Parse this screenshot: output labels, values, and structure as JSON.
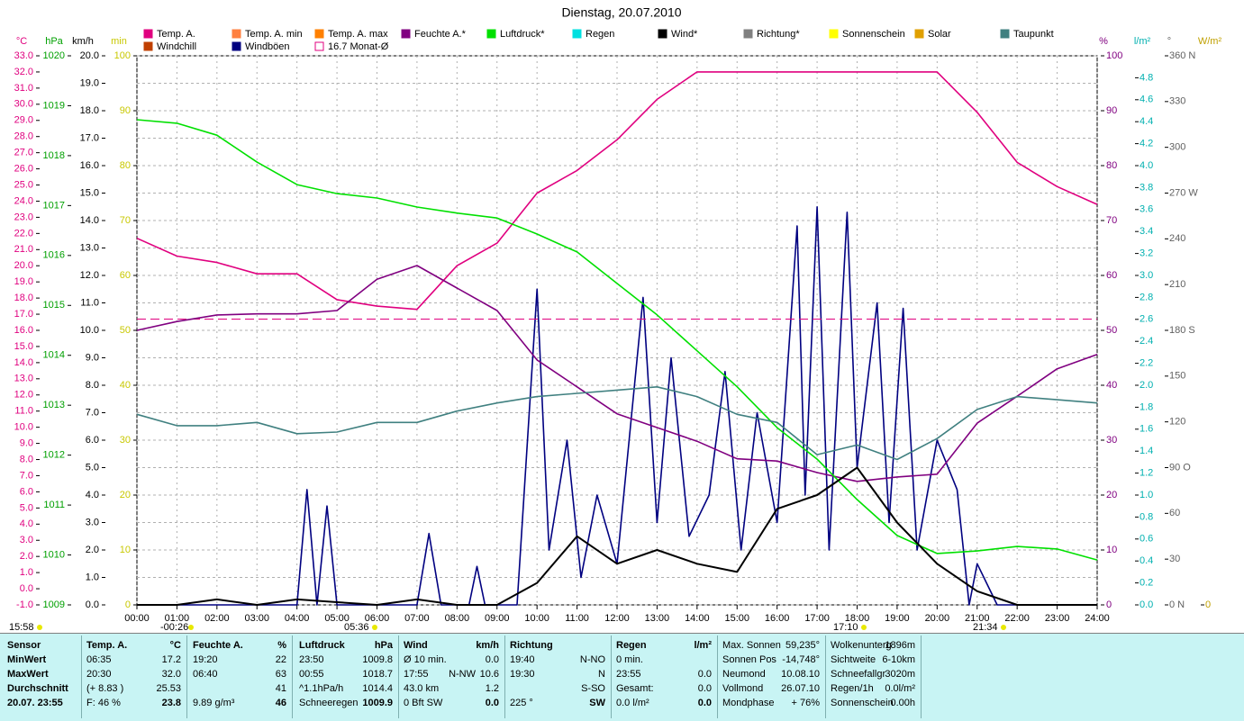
{
  "chart_data": {
    "type": "line",
    "title": "Dienstag, 20.07.2010",
    "grid": true,
    "xlim": [
      0,
      24
    ],
    "xticks": [
      {
        "value": 0,
        "label": "00:00"
      },
      {
        "value": 1,
        "label": "01:00"
      },
      {
        "value": 2,
        "label": "02:00"
      },
      {
        "value": 3,
        "label": "03:00"
      },
      {
        "value": 4,
        "label": "04:00"
      },
      {
        "value": 5,
        "label": "05:00"
      },
      {
        "value": 6,
        "label": "06:00"
      },
      {
        "value": 7,
        "label": "07:00"
      },
      {
        "value": 8,
        "label": "08:00"
      },
      {
        "value": 9,
        "label": "09:00"
      },
      {
        "value": 10,
        "label": "10:00"
      },
      {
        "value": 11,
        "label": "11:00"
      },
      {
        "value": 12,
        "label": "12:00"
      },
      {
        "value": 13,
        "label": "13:00"
      },
      {
        "value": 14,
        "label": "14:00"
      },
      {
        "value": 15,
        "label": "15:00"
      },
      {
        "value": 16,
        "label": "16:00"
      },
      {
        "value": 17,
        "label": "17:00"
      },
      {
        "value": 18,
        "label": "18:00"
      },
      {
        "value": 19,
        "label": "19:00"
      },
      {
        "value": 20,
        "label": "20:00"
      },
      {
        "value": 21,
        "label": "21:00"
      },
      {
        "value": 22,
        "label": "22:00"
      },
      {
        "value": 23,
        "label": "23:00"
      },
      {
        "value": 24,
        "label": "24:00"
      }
    ],
    "x": [
      0,
      1,
      2,
      3,
      4,
      5,
      6,
      7,
      8,
      9,
      10,
      11,
      12,
      13,
      14,
      15,
      16,
      17,
      18,
      19,
      20,
      21,
      22,
      23,
      24
    ],
    "axes": {
      "y": {
        "label": "°C",
        "color": "#e0007f",
        "ylim": [
          -1,
          33
        ],
        "yticks": [
          {
            "value": -1,
            "label": "-1.0"
          },
          {
            "value": 0,
            "label": "0.0"
          },
          {
            "value": 1,
            "label": "1.0"
          },
          {
            "value": 2,
            "label": "2.0"
          },
          {
            "value": 3,
            "label": "3.0"
          },
          {
            "value": 4,
            "label": "4.0"
          },
          {
            "value": 5,
            "label": "5.0"
          },
          {
            "value": 6,
            "label": "6.0"
          },
          {
            "value": 7,
            "label": "7.0"
          },
          {
            "value": 8,
            "label": "8.0"
          },
          {
            "value": 9,
            "label": "9.0"
          },
          {
            "value": 10,
            "label": "10.0"
          },
          {
            "value": 11,
            "label": "11.0"
          },
          {
            "value": 12,
            "label": "12.0"
          },
          {
            "value": 13,
            "label": "13.0"
          },
          {
            "value": 14,
            "label": "14.0"
          },
          {
            "value": 15,
            "label": "15.0"
          },
          {
            "value": 16,
            "label": "16.0"
          },
          {
            "value": 17,
            "label": "17.0"
          },
          {
            "value": 18,
            "label": "18.0"
          },
          {
            "value": 19,
            "label": "19.0"
          },
          {
            "value": 20,
            "label": "20.0"
          },
          {
            "value": 21,
            "label": "21.0"
          },
          {
            "value": 22,
            "label": "22.0"
          },
          {
            "value": 23,
            "label": "23.0"
          },
          {
            "value": 24,
            "label": "24.0"
          },
          {
            "value": 25,
            "label": "25.0"
          },
          {
            "value": 26,
            "label": "26.0"
          },
          {
            "value": 27,
            "label": "27.0"
          },
          {
            "value": 28,
            "label": "28.0"
          },
          {
            "value": 29,
            "label": "29.0"
          },
          {
            "value": 30,
            "label": "30.0"
          },
          {
            "value": 31,
            "label": "31.0"
          },
          {
            "value": 32,
            "label": "32.0"
          },
          {
            "value": 33,
            "label": "33.0"
          }
        ]
      },
      "y2": {
        "label": "hPa",
        "color": "#00a000",
        "ylim": [
          1009,
          1020
        ],
        "yticks": [
          1009,
          1010,
          1011,
          1012,
          1013,
          1014,
          1015,
          1016,
          1017,
          1018,
          1019,
          1020
        ]
      },
      "y3": {
        "label": "km/h",
        "color": "#000000",
        "ylim": [
          0,
          20
        ],
        "yticks": [
          {
            "value": 0,
            "label": "0.0"
          },
          {
            "value": 1,
            "label": "1.0"
          },
          {
            "value": 2,
            "label": "2.0"
          },
          {
            "value": 3,
            "label": "3.0"
          },
          {
            "value": 4,
            "label": "4.0"
          },
          {
            "value": 5,
            "label": "5.0"
          },
          {
            "value": 6,
            "label": "6.0"
          },
          {
            "value": 7,
            "label": "7.0"
          },
          {
            "value": 8,
            "label": "8.0"
          },
          {
            "value": 9,
            "label": "9.0"
          },
          {
            "value": 10,
            "label": "10.0"
          },
          {
            "value": 11,
            "label": "11.0"
          },
          {
            "value": 12,
            "label": "12.0"
          },
          {
            "value": 13,
            "label": "13.0"
          },
          {
            "value": 14,
            "label": "14.0"
          },
          {
            "value": 15,
            "label": "15.0"
          },
          {
            "value": 16,
            "label": "16.0"
          },
          {
            "value": 17,
            "label": "17.0"
          },
          {
            "value": 18,
            "label": "18.0"
          },
          {
            "value": 19,
            "label": "19.0"
          },
          {
            "value": 20,
            "label": "20.0"
          }
        ]
      },
      "y4": {
        "label": "min",
        "color": "#c8c800",
        "ylim": [
          0,
          100
        ],
        "yticks": [
          0,
          10,
          20,
          30,
          40,
          50,
          60,
          70,
          80,
          90,
          100
        ]
      },
      "y5": {
        "label": "%",
        "color": "#800080",
        "ylim": [
          0,
          100
        ],
        "yticks": [
          0,
          10,
          20,
          30,
          40,
          50,
          60,
          70,
          80,
          90,
          100
        ]
      },
      "y6": {
        "label": "l/m²",
        "color": "#00b0b0",
        "ylim": [
          0,
          5
        ],
        "yticks": [
          {
            "value": 0,
            "label": "0.0"
          },
          {
            "value": 0.2,
            "label": "0.2"
          },
          {
            "value": 0.4,
            "label": "0.4"
          },
          {
            "value": 0.6,
            "label": "0.6"
          },
          {
            "value": 0.8,
            "label": "0.8"
          },
          {
            "value": 1,
            "label": "1.0"
          },
          {
            "value": 1.2,
            "label": "1.2"
          },
          {
            "value": 1.4,
            "label": "1.4"
          },
          {
            "value": 1.6,
            "label": "1.6"
          },
          {
            "value": 1.8,
            "label": "1.8"
          },
          {
            "value": 2,
            "label": "2.0"
          },
          {
            "value": 2.2,
            "label": "2.2"
          },
          {
            "value": 2.4,
            "label": "2.4"
          },
          {
            "value": 2.6,
            "label": "2.6"
          },
          {
            "value": 2.8,
            "label": "2.8"
          },
          {
            "value": 3,
            "label": "3.0"
          },
          {
            "value": 3.2,
            "label": "3.2"
          },
          {
            "value": 3.4,
            "label": "3.4"
          },
          {
            "value": 3.6,
            "label": "3.6"
          },
          {
            "value": 3.8,
            "label": "3.8"
          },
          {
            "value": 4,
            "label": "4.0"
          },
          {
            "value": 4.2,
            "label": "4.2"
          },
          {
            "value": 4.4,
            "label": "4.4"
          },
          {
            "value": 4.6,
            "label": "4.6"
          },
          {
            "value": 4.8,
            "label": "4.8"
          }
        ]
      },
      "y7": {
        "label": "°",
        "color": "#606060",
        "ylim": [
          0,
          360
        ],
        "yticks": [
          {
            "value": 0,
            "label": "0 N"
          },
          30,
          60,
          {
            "value": 90,
            "label": "90 O"
          },
          120,
          150,
          {
            "value": 180,
            "label": "180 S"
          },
          210,
          240,
          {
            "value": 270,
            "label": "270 W"
          },
          300,
          330,
          {
            "value": 360,
            "label": "360 N"
          }
        ]
      },
      "y8": {
        "label": "W/m²",
        "color": "#c0a000",
        "yticks": [
          0
        ]
      }
    },
    "series": [
      {
        "name": "Temp. A.",
        "color": "#e0007f",
        "axis": "y",
        "values": [
          21.7,
          20.6,
          20.2,
          19.5,
          19.5,
          17.9,
          17.5,
          17.3,
          20.0,
          21.4,
          24.5,
          25.9,
          27.8,
          30.3,
          32.0,
          32.0,
          32.0,
          32.0,
          32.0,
          32.0,
          32.0,
          29.5,
          26.4,
          24.9,
          23.8
        ]
      },
      {
        "name": "Windchill",
        "color": "#c04000"
      },
      {
        "name": "Temp. A. min",
        "color": "#ff8040"
      },
      {
        "name": "Windböen",
        "color": "#000080",
        "axis": "y3",
        "x": [
          0,
          4,
          4.25,
          4.5,
          4.75,
          5,
          7,
          7.3,
          7.6,
          8.3,
          8.5,
          8.7,
          9.5,
          10,
          10.3,
          10.75,
          11.1,
          11.5,
          12,
          12.65,
          13,
          13.35,
          13.8,
          14.3,
          14.7,
          15.1,
          15.5,
          16,
          16.5,
          16.7,
          17,
          17.3,
          17.75,
          18,
          18.5,
          18.8,
          19.15,
          19.5,
          20,
          20.5,
          20.8,
          21,
          21.5,
          24
        ],
        "values": [
          0,
          0,
          4.2,
          0,
          3.6,
          0,
          0,
          2.6,
          0,
          0,
          1.4,
          0,
          0,
          11.5,
          2,
          6,
          1,
          4,
          1.5,
          11.2,
          3,
          9,
          2.5,
          4,
          8.5,
          2,
          7,
          3,
          13.8,
          4,
          14.5,
          2,
          14.3,
          5,
          11,
          3,
          10.8,
          2,
          6,
          4.2,
          0,
          1.5,
          0,
          0
        ]
      },
      {
        "name": "Temp. A. max",
        "color": "#ff8000"
      },
      {
        "name": "16.7 Monat-Ø",
        "color": "#e0007f",
        "axis": "y",
        "value": 16.7
      },
      {
        "name": "Feuchte A.*",
        "color": "#800080",
        "axis": "y5",
        "values": [
          50,
          51.6,
          52.8,
          53,
          53,
          53.6,
          59.3,
          61.8,
          57.7,
          53.6,
          44.6,
          39.7,
          34.8,
          32.3,
          29.8,
          26.6,
          26.2,
          24.1,
          22.5,
          23.3,
          23.8,
          33.1,
          38,
          43,
          45.6
        ]
      },
      {
        "name": "Luftdruck*",
        "color": "#00e000",
        "axis": "y2",
        "values": [
          1018.72,
          1018.65,
          1018.41,
          1017.87,
          1017.42,
          1017.24,
          1017.15,
          1016.97,
          1016.85,
          1016.75,
          1016.43,
          1016.07,
          1015.44,
          1014.81,
          1014.09,
          1013.37,
          1012.55,
          1011.92,
          1011.11,
          1010.39,
          1010.03,
          1010.08,
          1010.17,
          1010.12,
          1009.9
        ]
      },
      {
        "name": "Regen",
        "color": "#00e0e0"
      },
      {
        "name": "Wind*",
        "color": "#000000",
        "axis": "y3",
        "values": [
          0,
          0,
          0.2,
          0,
          0.2,
          0.1,
          0,
          0.2,
          0,
          0,
          0.8,
          2.5,
          1.5,
          2,
          1.5,
          1.2,
          3.5,
          4,
          5,
          3,
          1.5,
          0.5,
          0,
          0,
          0
        ]
      },
      {
        "name": "Richtung*",
        "color": "#808080"
      },
      {
        "name": "Sonnenschein",
        "color": "#ffff00"
      },
      {
        "name": "Solar",
        "color": "#e0a000"
      },
      {
        "name": "Taupunkt",
        "color": "#408080",
        "axis": "y",
        "values": [
          10.8,
          10.1,
          10.1,
          10.3,
          9.6,
          9.7,
          10.3,
          10.3,
          11.0,
          11.5,
          11.9,
          12.1,
          12.3,
          12.5,
          11.9,
          10.8,
          10.3,
          8.3,
          8.9,
          8.0,
          9.3,
          11.1,
          11.9,
          11.7,
          11.5
        ]
      }
    ],
    "annotations": [
      "15:58",
      "-00:26",
      "05:36",
      "17:10",
      "21:34"
    ]
  },
  "panel": [
    {
      "rows": [
        {
          "l": "Sensor"
        },
        {
          "l": "MinWert"
        },
        {
          "l": "MaxWert"
        },
        {
          "l": "Durchschnitt"
        },
        {
          "l": "20.07. 23:55"
        }
      ]
    },
    {
      "rows": [
        {
          "l": "Temp. A.",
          "r": "°C"
        },
        {
          "l": "06:35",
          "r": "17.2"
        },
        {
          "l": "20:30",
          "r": "32.0"
        },
        {
          "l": "(+ 8.83 )",
          "r": "25.53"
        },
        {
          "l": "F: 46 %",
          "r": "23.8"
        }
      ]
    },
    {
      "rows": [
        {
          "l": "Feuchte A.",
          "r": "%"
        },
        {
          "l": "19:20",
          "r": "22"
        },
        {
          "l": "06:40",
          "r": "63"
        },
        {
          "r": "41"
        },
        {
          "l": "9.89 g/m³",
          "r": "46"
        }
      ]
    },
    {
      "rows": [
        {
          "l": "Luftdruck",
          "r": "hPa"
        },
        {
          "l": "23:50",
          "r": "1009.8"
        },
        {
          "l": "00:55",
          "r": "1018.7"
        },
        {
          "l": "^1.1hPa/h",
          "r": "1014.4"
        },
        {
          "l": "Schneeregen",
          "r": "1009.9"
        }
      ]
    },
    {
      "rows": [
        {
          "l": "Wind",
          "r": "km/h"
        },
        {
          "l": "Ø 10 min.",
          "r": "0.0"
        },
        {
          "l": "17:55",
          "m": "N-NW",
          "r": "10.6"
        },
        {
          "l": "43.0 km",
          "r": "1.2"
        },
        {
          "l": "0 Bft SW",
          "r": "0.0"
        }
      ]
    },
    {
      "rows": [
        {
          "l": "Richtung"
        },
        {
          "l": "19:40",
          "r": "N-NO"
        },
        {
          "l": "19:30",
          "r": "N"
        },
        {
          "r": "S-SO"
        },
        {
          "l": "225 °",
          "r": "SW"
        }
      ]
    },
    {
      "rows": [
        {
          "l": "Regen",
          "r": "l/m²"
        },
        {
          "l": "0 min."
        },
        {
          "l": "23:55",
          "r": "0.0"
        },
        {
          "l": "Gesamt:",
          "r": "0.0"
        },
        {
          "l": "0.0 l/m²",
          "r": "0.0"
        }
      ]
    },
    {
      "rows": [
        {
          "l": "Max. Sonnen",
          "r": "59,235°"
        },
        {
          "l": "Sonnen Pos",
          "r": "-14,748°"
        },
        {
          "l": "Neumond",
          "r": "10.08.10"
        },
        {
          "l": "Vollmond",
          "r": "26.07.10"
        },
        {
          "l": "Mondphase",
          "r": "+ 76%"
        }
      ]
    },
    {
      "rows": [
        {
          "l": "Wolkenunterg",
          "r": "1896m"
        },
        {
          "l": "Sichtweite",
          "r": "6-10km"
        },
        {
          "l": "Schneefallgr",
          "r": "3020m"
        },
        {
          "l": "Regen/1h",
          "r": "0.0l/m²"
        },
        {
          "l": "Sonnenschein",
          "r": "0.00h"
        }
      ]
    }
  ]
}
